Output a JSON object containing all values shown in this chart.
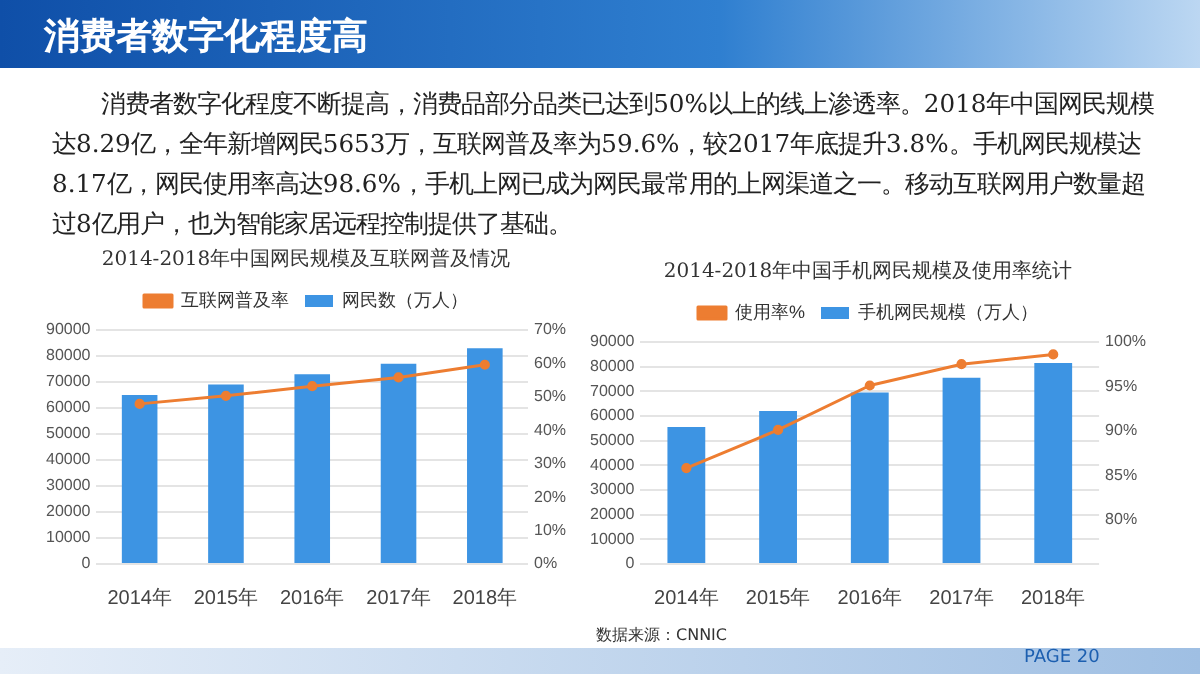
{
  "chart_data": [
    {
      "type": "other",
      "title": "消费者数字化程度高",
      "annotations": [
        "消费者数字化程度不断提高，消费品部分品类已达到50%以上的线上渗透率。2018年中国网民规模达8.29亿，全年新增网民5653万，互联网普及率为59.6%，较2017年底提升3.8%。手机网民规模达8.17亿，网民使用率高达98.6%，手机上网已成为网民最常用的上网渠道之一。移动互联网用户数量超过8亿用户，也为智能家居远程控制提供了基础。",
        "PAGE 20"
      ]
    },
    {
      "type": "bar",
      "title": "2014-2018年中国网民规模及互联网普及情况",
      "categories": [
        "2014年",
        "2015年",
        "2016年",
        "2017年",
        "2018年"
      ],
      "series": [
        {
          "name": "网民数（万人）",
          "color": "#3d94e3",
          "values": [
            65000,
            69000,
            73000,
            77000,
            83000
          ]
        },
        {
          "name": "互联网普及率",
          "type": "line",
          "axis": "y2",
          "color": "#ed7d31",
          "values": [
            47.9,
            50.3,
            53.2,
            55.8,
            59.6
          ]
        }
      ],
      "ylim": [
        0,
        90000
      ],
      "yticks": [
        0,
        10000,
        20000,
        30000,
        40000,
        50000,
        60000,
        70000,
        80000,
        90000
      ],
      "y2lim": [
        0,
        70
      ],
      "y2ticks": [
        {
          "value": 0,
          "label": "0%"
        },
        {
          "value": 10,
          "label": "10%"
        },
        {
          "value": 20,
          "label": "20%"
        },
        {
          "value": 30,
          "label": "30%"
        },
        {
          "value": 40,
          "label": "40%"
        },
        {
          "value": 50,
          "label": "50%"
        },
        {
          "value": 60,
          "label": "60%"
        },
        {
          "value": 70,
          "label": "70%"
        }
      ],
      "grid": "y",
      "legend": "top",
      "marker": "circle",
      "line_style": "solid"
    },
    {
      "type": "bar",
      "title": "2014-2018年中国手机网民规模及使用率统计",
      "categories": [
        "2014年",
        "2015年",
        "2016年",
        "2017年",
        "2018年"
      ],
      "series": [
        {
          "name": "手机网民规模（万人）",
          "color": "#3d94e3",
          "values": [
            55500,
            62000,
            69500,
            75500,
            81500
          ]
        },
        {
          "name": "使用率%",
          "type": "line",
          "axis": "y2",
          "color": "#ed7d31",
          "values": [
            85.8,
            90.1,
            95.1,
            97.5,
            98.6
          ]
        }
      ],
      "ylim": [
        0,
        90000
      ],
      "yticks": [
        0,
        10000,
        20000,
        30000,
        40000,
        50000,
        60000,
        70000,
        80000,
        90000
      ],
      "y2lim": [
        75,
        100
      ],
      "y2ticks": [
        {
          "value": 75,
          "label": null
        },
        {
          "value": 80,
          "label": "80%"
        },
        {
          "value": 85,
          "label": "85%"
        },
        {
          "value": 90,
          "label": "90%"
        },
        {
          "value": 95,
          "label": "95%"
        },
        {
          "value": 100,
          "label": "100%"
        }
      ],
      "grid": "y",
      "legend": "top",
      "marker": "circle",
      "line_style": "solid",
      "annotations": [
        "数据来源：CNNIC"
      ]
    }
  ]
}
